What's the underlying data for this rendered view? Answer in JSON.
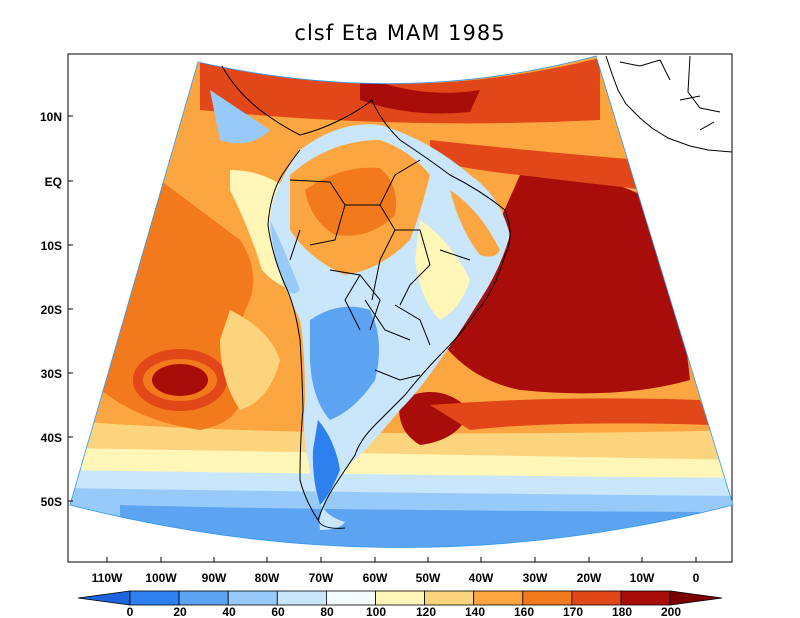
{
  "chart_data": {
    "type": "heatmap",
    "title": "clsf Eta MAM 1985",
    "projection": "conic",
    "lat_ticks": [
      "10N",
      "EQ",
      "10S",
      "20S",
      "30S",
      "40S",
      "50S"
    ],
    "lat_values": [
      10,
      0,
      -10,
      -20,
      -30,
      -40,
      -50
    ],
    "lon_ticks": [
      "110W",
      "100W",
      "90W",
      "80W",
      "70W",
      "60W",
      "50W",
      "40W",
      "30W",
      "20W",
      "10W",
      "0"
    ],
    "lon_values": [
      -110,
      -100,
      -90,
      -80,
      -70,
      -60,
      -50,
      -40,
      -30,
      -20,
      -10,
      0
    ],
    "colorbar": {
      "levels": [
        0,
        20,
        40,
        60,
        80,
        100,
        120,
        140,
        160,
        170,
        180,
        200
      ],
      "labels": [
        "0",
        "20",
        "40",
        "60",
        "80",
        "100",
        "120",
        "140",
        "160",
        "170",
        "180",
        "200"
      ],
      "colors": [
        "#1c63dc",
        "#2e80ee",
        "#5ca4f2",
        "#98caf9",
        "#c9e6fb",
        "#f2fbfe",
        "#fff6b8",
        "#fdd47e",
        "#fca642",
        "#f27a1c",
        "#e2471a",
        "#a80d0a",
        "#7c0000"
      ]
    }
  }
}
